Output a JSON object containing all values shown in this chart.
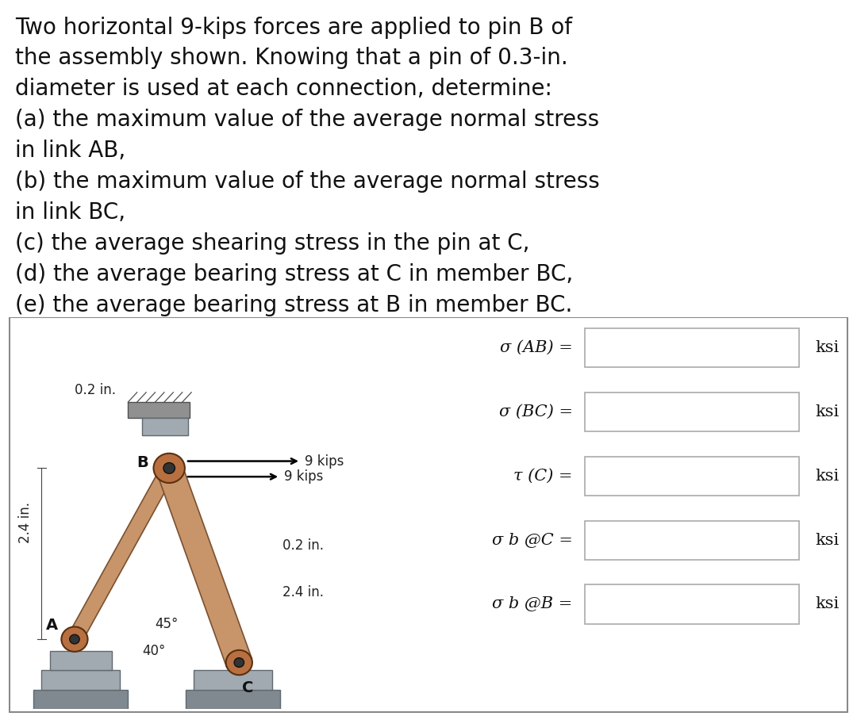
{
  "title_text_lines": [
    "Two horizontal 9-kips forces are applied to pin B of",
    "the assembly shown. Knowing that a pin of 0.3-in.",
    "diameter is used at each connection, determine:",
    "(a) the maximum value of the average normal stress",
    "in link AB,",
    "(b) the maximum value of the average normal stress",
    "in link BC,",
    "(c) the average shearing stress in the pin at C,",
    "(d) the average bearing stress at C in member BC,",
    "(e) the average bearing stress at B in member BC."
  ],
  "title_fontsize": 20,
  "bg_color": "#ffffff",
  "panel_bg": "#e0e0e0",
  "box_bg": "#ffffff",
  "box_border": "#aaaaaa",
  "labels": [
    "σ (AB) =",
    "σ (BC) =",
    "τ (C) =",
    "σ b @C =",
    "σ b @B ="
  ],
  "unit": "ksi",
  "label_fontsize": 15,
  "unit_fontsize": 15,
  "link_color": "#c8956a",
  "link_edge": "#7a5030",
  "pin_color": "#b87040",
  "pin_edge": "#5a3010",
  "base_color": "#a0aab0",
  "base_dark": "#808890",
  "base_edge": "#606870",
  "diagram_text_fontsize": 12
}
